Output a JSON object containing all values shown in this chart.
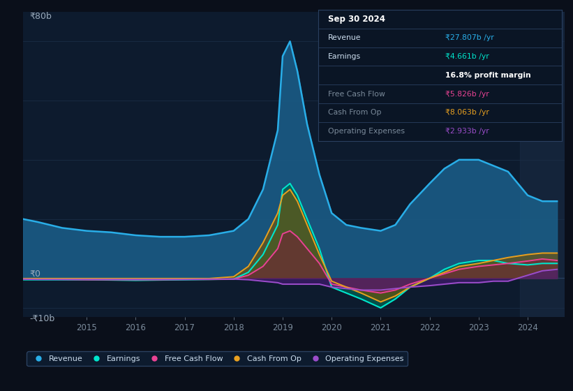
{
  "bg_color": "#0a0f1a",
  "plot_bg_color": "#0d1b2e",
  "grid_color": "#1a2d45",
  "ylabel_top": "₹80b",
  "ylabel_zero": "₹0",
  "ylabel_bottom": "-₹10b",
  "x_ticks": [
    2015,
    2016,
    2017,
    2018,
    2019,
    2020,
    2021,
    2022,
    2023,
    2024
  ],
  "legend": [
    {
      "label": "Revenue",
      "color": "#29aee8"
    },
    {
      "label": "Earnings",
      "color": "#00e5cc"
    },
    {
      "label": "Free Cash Flow",
      "color": "#e84393"
    },
    {
      "label": "Cash From Op",
      "color": "#e8a020"
    },
    {
      "label": "Operating Expenses",
      "color": "#9b4dca"
    }
  ],
  "info_box_title": "Sep 30 2024",
  "info_rows": [
    {
      "label": "Revenue",
      "value": "₹27.807b /yr",
      "value_color": "#29aee8",
      "label_color": "#ccddee",
      "bold": false
    },
    {
      "label": "Earnings",
      "value": "₹4.661b /yr",
      "value_color": "#00e5cc",
      "label_color": "#ccddee",
      "bold": false
    },
    {
      "label": "",
      "value": "16.8% profit margin",
      "value_color": "#ffffff",
      "label_color": "#ccddee",
      "bold": true
    },
    {
      "label": "Free Cash Flow",
      "value": "₹5.826b /yr",
      "value_color": "#e84393",
      "label_color": "#7a8a9a",
      "bold": false
    },
    {
      "label": "Cash From Op",
      "value": "₹8.063b /yr",
      "value_color": "#e8a020",
      "label_color": "#7a8a9a",
      "bold": false
    },
    {
      "label": "Operating Expenses",
      "value": "₹2.933b /yr",
      "value_color": "#9b4dca",
      "label_color": "#7a8a9a",
      "bold": false
    }
  ],
  "x_data": [
    2013.7,
    2014.0,
    2014.5,
    2015.0,
    2015.5,
    2016.0,
    2016.5,
    2017.0,
    2017.5,
    2018.0,
    2018.3,
    2018.6,
    2018.9,
    2019.0,
    2019.15,
    2019.3,
    2019.5,
    2019.75,
    2020.0,
    2020.3,
    2020.6,
    2021.0,
    2021.3,
    2021.6,
    2022.0,
    2022.3,
    2022.6,
    2023.0,
    2023.3,
    2023.6,
    2024.0,
    2024.3,
    2024.6
  ],
  "revenue": [
    20,
    19,
    17,
    16,
    15.5,
    14.5,
    14.0,
    14.0,
    14.5,
    16,
    20,
    30,
    50,
    75,
    80,
    70,
    52,
    35,
    22,
    18,
    17,
    16,
    18,
    25,
    32,
    37,
    40,
    40,
    38,
    36,
    28,
    26,
    26
  ],
  "earnings": [
    -0.5,
    -0.5,
    -0.5,
    -0.5,
    -0.6,
    -0.7,
    -0.6,
    -0.5,
    -0.4,
    -0.3,
    2,
    8,
    18,
    30,
    32,
    28,
    20,
    10,
    -3,
    -5,
    -7,
    -10,
    -7,
    -3,
    0,
    3,
    5,
    6,
    6,
    5,
    4.5,
    5,
    5
  ],
  "free_cash_flow": [
    -0.3,
    -0.3,
    -0.4,
    -0.5,
    -0.5,
    -0.5,
    -0.5,
    -0.4,
    -0.4,
    -0.3,
    1,
    4,
    10,
    15,
    16,
    14,
    10,
    5,
    -2,
    -3,
    -4,
    -5,
    -4,
    -2,
    0,
    1.5,
    3,
    4,
    4.5,
    5,
    5.8,
    6.5,
    6
  ],
  "cash_from_op": [
    -0.1,
    -0.1,
    -0.1,
    -0.1,
    -0.1,
    -0.1,
    -0.1,
    -0.1,
    -0.1,
    0.5,
    4,
    12,
    22,
    28,
    30,
    26,
    18,
    8,
    -1,
    -3,
    -5,
    -8,
    -6,
    -3,
    0,
    2,
    4,
    5,
    6,
    7,
    8,
    8.5,
    8.5
  ],
  "op_expenses": [
    -0.3,
    -0.4,
    -0.4,
    -0.4,
    -0.4,
    -0.4,
    -0.4,
    -0.4,
    -0.3,
    -0.3,
    -0.5,
    -1,
    -1.5,
    -2,
    -2,
    -2,
    -2,
    -2,
    -3,
    -3.5,
    -4,
    -4,
    -3.5,
    -3,
    -2.5,
    -2,
    -1.5,
    -1.5,
    -1,
    -1,
    1,
    2.5,
    3
  ]
}
